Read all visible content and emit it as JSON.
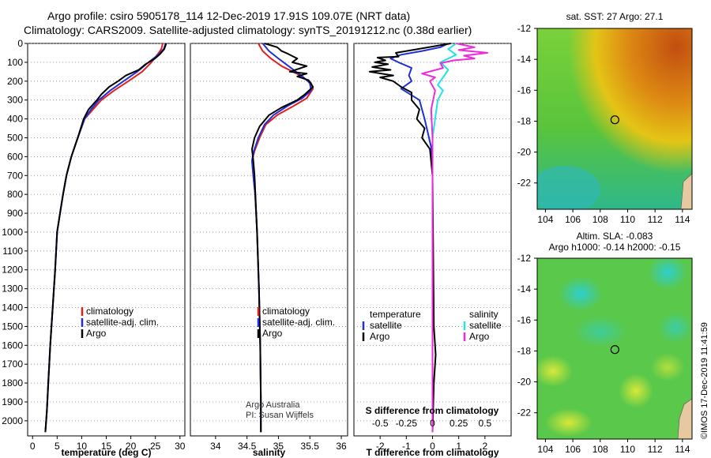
{
  "header": {
    "line1": "Argo profile: csiro 5905178_114 12-Dec-2019 17.91S 109.07E (NRT data)",
    "line2": "Climatology: CARS2009. Satellite-adjusted climatology: synTS_20191212.nc (0.38d earlier)"
  },
  "colors": {
    "climatology": "#e0201e",
    "satellite": "#1f2fd8",
    "argo": "#000000",
    "sat_salinity": "#22e3e3",
    "argo_salinity": "#ee2ad9"
  },
  "chart_data": [
    {
      "type": "line",
      "id": "temperature",
      "xlabel": "temperature (deg C)",
      "ylabel": "",
      "xlim": [
        -1,
        31
      ],
      "ylim": [
        2080,
        0
      ],
      "xticks": [
        0,
        5,
        10,
        15,
        20,
        25,
        30
      ],
      "yticks": [
        0,
        100,
        200,
        300,
        400,
        500,
        600,
        700,
        800,
        900,
        1000,
        1100,
        1200,
        1300,
        1400,
        1500,
        1600,
        1700,
        1800,
        1900,
        2000
      ],
      "legend": {
        "position": "lower-center",
        "entries": [
          "climatology",
          "satellite-adj. clim.",
          "Argo"
        ]
      },
      "series": [
        {
          "name": "climatology",
          "color": "#e0201e",
          "points": [
            [
              26.5,
              0
            ],
            [
              26.2,
              30
            ],
            [
              25.4,
              60
            ],
            [
              24.2,
              100
            ],
            [
              22.3,
              150
            ],
            [
              19.5,
              200
            ],
            [
              16.6,
              250
            ],
            [
              14,
              300
            ],
            [
              12.3,
              350
            ],
            [
              10.6,
              400
            ],
            [
              9.2,
              500
            ],
            [
              7.9,
              600
            ],
            [
              6.9,
              700
            ],
            [
              6.2,
              800
            ],
            [
              5.6,
              900
            ],
            [
              5,
              1000
            ],
            [
              4.6,
              1200
            ],
            [
              4.1,
              1400
            ],
            [
              3.6,
              1600
            ],
            [
              3.2,
              1800
            ],
            [
              2.9,
              1950
            ],
            [
              2.6,
              2060
            ]
          ]
        },
        {
          "name": "satellite-adj. clim.",
          "color": "#1f2fd8",
          "points": [
            [
              27.1,
              0
            ],
            [
              26.7,
              30
            ],
            [
              25.6,
              60
            ],
            [
              23.6,
              100
            ],
            [
              21.3,
              150
            ],
            [
              18.5,
              200
            ],
            [
              15.8,
              250
            ],
            [
              13.5,
              300
            ],
            [
              11.9,
              350
            ],
            [
              10.6,
              400
            ],
            [
              9.2,
              500
            ],
            [
              7.9,
              600
            ],
            [
              6.9,
              700
            ],
            [
              6.2,
              800
            ],
            [
              5.6,
              900
            ],
            [
              5,
              1000
            ],
            [
              4.6,
              1200
            ],
            [
              4.1,
              1400
            ],
            [
              3.6,
              1600
            ],
            [
              3.2,
              1800
            ],
            [
              2.9,
              1950
            ],
            [
              2.6,
              2060
            ]
          ]
        },
        {
          "name": "Argo",
          "color": "#000000",
          "points": [
            [
              27.2,
              0
            ],
            [
              26.8,
              30
            ],
            [
              26.0,
              55
            ],
            [
              24.9,
              80
            ],
            [
              23.0,
              110
            ],
            [
              21.6,
              140
            ],
            [
              19.0,
              170
            ],
            [
              17.4,
              200
            ],
            [
              15.6,
              230
            ],
            [
              14.0,
              270
            ],
            [
              13.1,
              300
            ],
            [
              11.4,
              350
            ],
            [
              10.4,
              400
            ],
            [
              9.2,
              500
            ],
            [
              7.9,
              600
            ],
            [
              6.9,
              700
            ],
            [
              6.2,
              800
            ],
            [
              5.6,
              900
            ],
            [
              5,
              1000
            ],
            [
              4.6,
              1200
            ],
            [
              4.1,
              1400
            ],
            [
              3.6,
              1600
            ],
            [
              3.2,
              1800
            ],
            [
              2.9,
              1950
            ],
            [
              2.6,
              2060
            ]
          ]
        }
      ]
    },
    {
      "type": "line",
      "id": "salinity",
      "xlabel": "salinity",
      "xlim": [
        33.6,
        36.1
      ],
      "ylim": [
        2080,
        0
      ],
      "xticks": [
        34,
        34.5,
        35,
        35.5,
        36
      ],
      "legend": {
        "position": "lower-center",
        "entries": [
          "climatology",
          "satellite-adj. clim.",
          "Argo"
        ]
      },
      "annotation": [
        "Argo Australia",
        "PI: Susan Wijffels"
      ],
      "series": [
        {
          "name": "climatology",
          "color": "#e0201e",
          "points": [
            [
              34.68,
              0
            ],
            [
              34.75,
              40
            ],
            [
              34.88,
              80
            ],
            [
              35.05,
              120
            ],
            [
              35.35,
              170
            ],
            [
              35.52,
              210
            ],
            [
              35.55,
              240
            ],
            [
              35.45,
              290
            ],
            [
              35.25,
              330
            ],
            [
              34.98,
              380
            ],
            [
              34.8,
              430
            ],
            [
              34.7,
              500
            ],
            [
              34.62,
              570
            ],
            [
              34.58,
              620
            ],
            [
              34.6,
              700
            ],
            [
              34.63,
              800
            ],
            [
              34.66,
              1000
            ],
            [
              34.69,
              1300
            ],
            [
              34.71,
              1600
            ],
            [
              34.72,
              1900
            ],
            [
              34.72,
              2060
            ]
          ]
        },
        {
          "name": "satellite-adj. clim.",
          "color": "#1f2fd8",
          "points": [
            [
              34.75,
              0
            ],
            [
              34.85,
              40
            ],
            [
              35.0,
              80
            ],
            [
              35.2,
              130
            ],
            [
              35.4,
              180
            ],
            [
              35.5,
              210
            ],
            [
              35.52,
              250
            ],
            [
              35.38,
              290
            ],
            [
              35.15,
              330
            ],
            [
              34.92,
              380
            ],
            [
              34.78,
              430
            ],
            [
              34.68,
              500
            ],
            [
              34.61,
              570
            ],
            [
              34.58,
              620
            ],
            [
              34.6,
              700
            ],
            [
              34.63,
              800
            ],
            [
              34.66,
              1000
            ],
            [
              34.69,
              1300
            ],
            [
              34.71,
              1600
            ],
            [
              34.72,
              1900
            ],
            [
              34.72,
              2060
            ]
          ]
        },
        {
          "name": "Argo",
          "color": "#000000",
          "points": [
            [
              34.78,
              0
            ],
            [
              34.98,
              20
            ],
            [
              35.05,
              40
            ],
            [
              35.15,
              55
            ],
            [
              35.3,
              80
            ],
            [
              35.22,
              100
            ],
            [
              35.45,
              120
            ],
            [
              35.18,
              150
            ],
            [
              35.45,
              160
            ],
            [
              35.3,
              175
            ],
            [
              35.48,
              195
            ],
            [
              35.55,
              230
            ],
            [
              35.42,
              270
            ],
            [
              35.3,
              300
            ],
            [
              35.05,
              340
            ],
            [
              34.85,
              380
            ],
            [
              34.7,
              440
            ],
            [
              34.62,
              500
            ],
            [
              34.58,
              560
            ],
            [
              34.6,
              620
            ],
            [
              34.62,
              700
            ],
            [
              34.64,
              850
            ],
            [
              34.66,
              1000
            ],
            [
              34.69,
              1300
            ],
            [
              34.71,
              1600
            ],
            [
              34.72,
              1900
            ],
            [
              34.72,
              2060
            ]
          ]
        }
      ]
    },
    {
      "type": "line",
      "id": "difference",
      "xlabel": "T difference from climatology",
      "xlim": [
        -3,
        3
      ],
      "ylim": [
        2080,
        0
      ],
      "xticks": [
        -2,
        -1,
        0,
        1,
        2
      ],
      "xlabel_top": "S difference from climatology",
      "xticks_top": [
        "-0.5",
        "-0.25",
        "0",
        "0.25",
        "0.5"
      ],
      "legend_left": {
        "title": "temperature",
        "entries": [
          "satellite",
          "Argo"
        ]
      },
      "legend_right": {
        "title": "salinity",
        "entries": [
          "satellite",
          "Argo"
        ]
      },
      "series": [
        {
          "name": "temperature satellite",
          "color": "#1f2fd8",
          "points": [
            [
              0.6,
              0
            ],
            [
              0.3,
              20
            ],
            [
              -0.4,
              40
            ],
            [
              -1.2,
              60
            ],
            [
              -1.6,
              80
            ],
            [
              -1.3,
              100
            ],
            [
              -0.8,
              130
            ],
            [
              -0.9,
              170
            ],
            [
              -0.8,
              200
            ],
            [
              -1.2,
              240
            ],
            [
              -0.5,
              300
            ],
            [
              -0.3,
              400
            ],
            [
              -0.05,
              550
            ],
            [
              0,
              700
            ],
            [
              0,
              2060
            ]
          ]
        },
        {
          "name": "temperature Argo",
          "color": "#000000",
          "points": [
            [
              0.7,
              0
            ],
            [
              -1.4,
              50
            ],
            [
              -1.3,
              70
            ],
            [
              -2.1,
              75
            ],
            [
              -1.8,
              90
            ],
            [
              -2.2,
              100
            ],
            [
              -1.7,
              110
            ],
            [
              -2.3,
              125
            ],
            [
              -1.6,
              140
            ],
            [
              -2.4,
              150
            ],
            [
              -1.5,
              170
            ],
            [
              -2.0,
              180
            ],
            [
              -1.5,
              200
            ],
            [
              -1.2,
              230
            ],
            [
              -0.8,
              260
            ],
            [
              -0.8,
              300
            ],
            [
              -0.5,
              350
            ],
            [
              -0.6,
              400
            ],
            [
              -0.3,
              450
            ],
            [
              -0.4,
              500
            ],
            [
              -0.1,
              560
            ],
            [
              0,
              700
            ],
            [
              0.05,
              1500
            ],
            [
              0.12,
              1650
            ],
            [
              0.05,
              1800
            ],
            [
              0,
              2060
            ]
          ]
        },
        {
          "name": "salinity satellite",
          "color": "#22e3e3",
          "points": [
            [
              0.9,
              0
            ],
            [
              0.6,
              30
            ],
            [
              0.9,
              60
            ],
            [
              0.3,
              100
            ],
            [
              0.6,
              140
            ],
            [
              0.4,
              180
            ],
            [
              0.2,
              220
            ],
            [
              0.4,
              250
            ],
            [
              0.2,
              300
            ],
            [
              0.1,
              400
            ],
            [
              0,
              500
            ],
            [
              0,
              2060
            ]
          ]
        },
        {
          "name": "salinity Argo",
          "color": "#ee2ad9",
          "points": [
            [
              0.9,
              0
            ],
            [
              1.6,
              20
            ],
            [
              1.0,
              35
            ],
            [
              2.1,
              50
            ],
            [
              1.2,
              65
            ],
            [
              1.6,
              80
            ],
            [
              0.8,
              90
            ],
            [
              0.3,
              105
            ],
            [
              0.4,
              130
            ],
            [
              -0.4,
              160
            ],
            [
              0.1,
              180
            ],
            [
              -0.1,
              200
            ],
            [
              0.1,
              250
            ],
            [
              -0.05,
              350
            ],
            [
              0,
              500
            ],
            [
              0,
              2060
            ]
          ]
        }
      ]
    },
    {
      "type": "heatmap",
      "id": "sst_map",
      "title": "sat. SST: 27 Argo: 27.1",
      "xlim": [
        103.4,
        114.7
      ],
      "ylim": [
        -23.7,
        -12
      ],
      "xticks": [
        104,
        106,
        108,
        110,
        112,
        114
      ],
      "yticks": [
        -12,
        -14,
        -16,
        -18,
        -20,
        -22
      ],
      "argo_position": [
        109.07,
        -17.91
      ]
    },
    {
      "type": "heatmap",
      "id": "sla_map",
      "title": "Altim. SLA: -0.083",
      "subtitle": "Argo h1000: -0.14 h2000: -0.15",
      "xlim": [
        103.4,
        114.7
      ],
      "ylim": [
        -23.7,
        -12
      ],
      "xticks": [
        104,
        106,
        108,
        110,
        112,
        114
      ],
      "yticks": [
        -12,
        -14,
        -16,
        -18,
        -20,
        -22
      ],
      "argo_position": [
        109.07,
        -17.91
      ]
    }
  ],
  "footer": {
    "credit": "©IMOS 17-Dec-2019 11:41:59"
  }
}
